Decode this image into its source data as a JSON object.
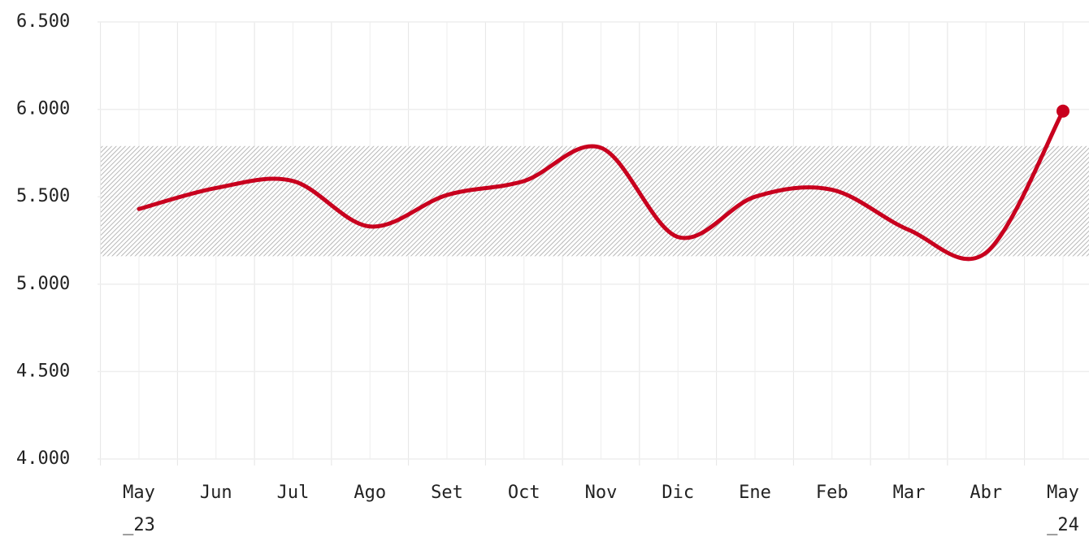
{
  "chart_data": {
    "type": "line",
    "categories": [
      "May _23",
      "Jun",
      "Jul",
      "Ago",
      "Set",
      "Oct",
      "Nov",
      "Dic",
      "Ene",
      "Feb",
      "Mar",
      "Abr",
      "May _24"
    ],
    "series": [
      {
        "color": "#c8001e",
        "values": [
          5430,
          5550,
          5590,
          5330,
          5510,
          5590,
          5780,
          5270,
          5500,
          5540,
          5310,
          5180,
          5990
        ]
      }
    ],
    "band": [
      5160,
      5790
    ],
    "ylim": [
      4000,
      6500
    ],
    "yticks": [
      {
        "value": 4000,
        "label": "4.000"
      },
      {
        "value": 4500,
        "label": "4.500"
      },
      {
        "value": 5000,
        "label": "5.000"
      },
      {
        "value": 5500,
        "label": "5.500"
      },
      {
        "value": 6000,
        "label": "6.000"
      },
      {
        "value": 6500,
        "label": "6.500"
      }
    ],
    "grid": true
  }
}
